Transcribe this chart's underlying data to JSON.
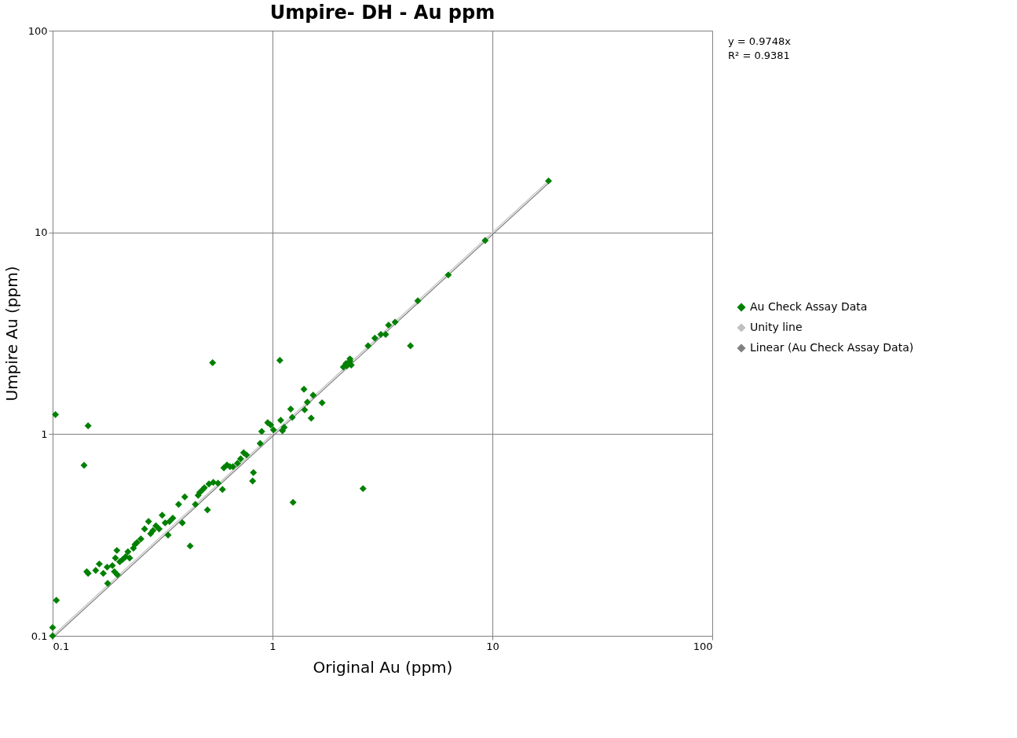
{
  "chart_data": {
    "type": "scatter",
    "title": "Umpire- DH - Au ppm",
    "xlabel": "Original Au (ppm)",
    "ylabel": "Umpire Au (ppm)",
    "log": "xy",
    "xlim": [
      0.1,
      100
    ],
    "ylim": [
      0.1,
      100
    ],
    "xticks": [
      0.1,
      1,
      10,
      100
    ],
    "yticks": [
      0.1,
      1,
      10,
      100
    ],
    "grid": true,
    "legend": "right",
    "marker": "diamond",
    "annotations": [
      "y = 0.9748x",
      "R² = 0.9381"
    ],
    "series": [
      {
        "name": "Au Check Assay Data",
        "color": "#008000",
        "x": [
          0.103,
          0.145,
          0.139,
          0.104,
          0.1,
          0.1,
          0.145,
          0.143,
          0.157,
          0.163,
          0.17,
          0.178,
          0.177,
          0.187,
          0.191,
          0.193,
          0.196,
          0.197,
          0.202,
          0.208,
          0.215,
          0.22,
          0.224,
          0.233,
          0.237,
          0.242,
          0.252,
          0.262,
          0.273,
          0.279,
          0.286,
          0.295,
          0.305,
          0.315,
          0.325,
          0.335,
          0.34,
          0.352,
          0.374,
          0.389,
          0.399,
          0.422,
          0.446,
          0.459,
          0.467,
          0.482,
          0.49,
          0.506,
          0.514,
          0.538,
          0.565,
          0.592,
          0.601,
          0.621,
          0.641,
          0.661,
          0.693,
          0.716,
          0.739,
          0.762,
          0.812,
          0.819,
          0.879,
          0.893,
          0.951,
          0.982,
          1.01,
          1.08,
          1.09,
          1.11,
          1.13,
          1.21,
          1.23,
          1.24,
          1.39,
          1.4,
          1.44,
          1.5,
          1.53,
          1.68,
          2.1,
          2.16,
          2.18,
          2.25,
          2.25,
          2.28,
          2.58,
          2.72,
          2.92,
          3.11,
          3.27,
          3.37,
          3.61,
          4.24,
          4.58,
          6.3,
          9.27,
          18.0,
          0.534
        ],
        "values": [
          1.25,
          1.1,
          0.7,
          0.15,
          0.11,
          0.1,
          0.204,
          0.208,
          0.211,
          0.227,
          0.204,
          0.182,
          0.219,
          0.223,
          0.208,
          0.243,
          0.265,
          0.201,
          0.233,
          0.239,
          0.247,
          0.261,
          0.243,
          0.272,
          0.284,
          0.29,
          0.302,
          0.339,
          0.369,
          0.321,
          0.333,
          0.351,
          0.339,
          0.396,
          0.363,
          0.316,
          0.369,
          0.383,
          0.448,
          0.363,
          0.488,
          0.279,
          0.448,
          0.497,
          0.514,
          0.532,
          0.542,
          0.421,
          0.566,
          0.576,
          0.571,
          0.532,
          0.68,
          0.703,
          0.69,
          0.69,
          0.716,
          0.755,
          0.809,
          0.788,
          0.586,
          0.645,
          0.898,
          1.03,
          1.14,
          1.11,
          1.05,
          2.32,
          1.17,
          1.04,
          1.08,
          1.33,
          1.21,
          0.459,
          1.67,
          1.32,
          1.44,
          1.2,
          1.56,
          1.43,
          2.15,
          2.24,
          2.18,
          2.3,
          2.36,
          2.2,
          0.537,
          2.74,
          2.99,
          3.12,
          3.12,
          3.47,
          3.59,
          2.74,
          4.58,
          6.15,
          9.12,
          18.0,
          2.26
        ]
      },
      {
        "name": "Unity line",
        "type": "line",
        "marker": "none",
        "line_style": "solid",
        "color": "#c0c0c0",
        "x": [
          0.1,
          18.0
        ],
        "values": [
          0.1,
          18.0
        ]
      },
      {
        "name": "Linear (Au Check Assay Data)",
        "type": "line",
        "marker": "none",
        "line_style": "solid",
        "color": "#808080",
        "x": [
          0.103,
          18.0
        ],
        "values": [
          0.1004,
          17.55
        ]
      }
    ]
  }
}
